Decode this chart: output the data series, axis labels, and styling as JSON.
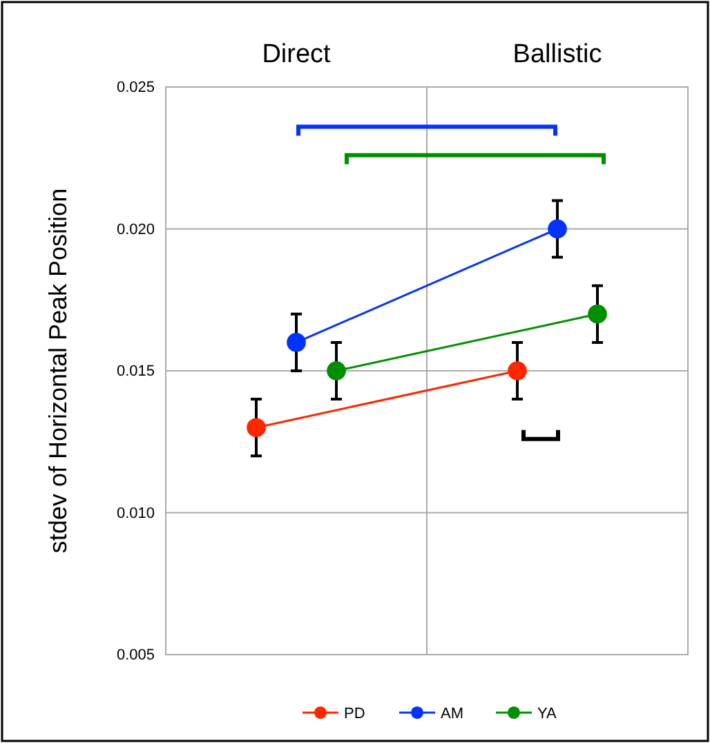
{
  "chart_data": {
    "type": "line",
    "ylabel": "stdev of Horizontal Peak Position",
    "categories": [
      "Direct",
      "Ballistic"
    ],
    "series": [
      {
        "name": "PD",
        "color": "#ff2600",
        "values": [
          0.013,
          0.015
        ],
        "errors": [
          0.001,
          0.001
        ]
      },
      {
        "name": "AM",
        "color": "#0433ff",
        "values": [
          0.016,
          0.02
        ],
        "errors": [
          0.001,
          0.001
        ]
      },
      {
        "name": "YA",
        "color": "#008f00",
        "values": [
          0.015,
          0.017
        ],
        "errors": [
          0.001,
          0.001
        ]
      }
    ],
    "ylim": [
      0.005,
      0.025
    ],
    "yticks": [
      {
        "value": 0.005,
        "label": "0.005"
      },
      {
        "value": 0.01,
        "label": "0.010"
      },
      {
        "value": 0.015,
        "label": "0.015"
      },
      {
        "value": 0.02,
        "label": "0.020"
      },
      {
        "value": 0.025,
        "label": "0.025"
      }
    ],
    "grid": true,
    "legend": "bottom",
    "marker": "circle",
    "line_style": "solid"
  }
}
